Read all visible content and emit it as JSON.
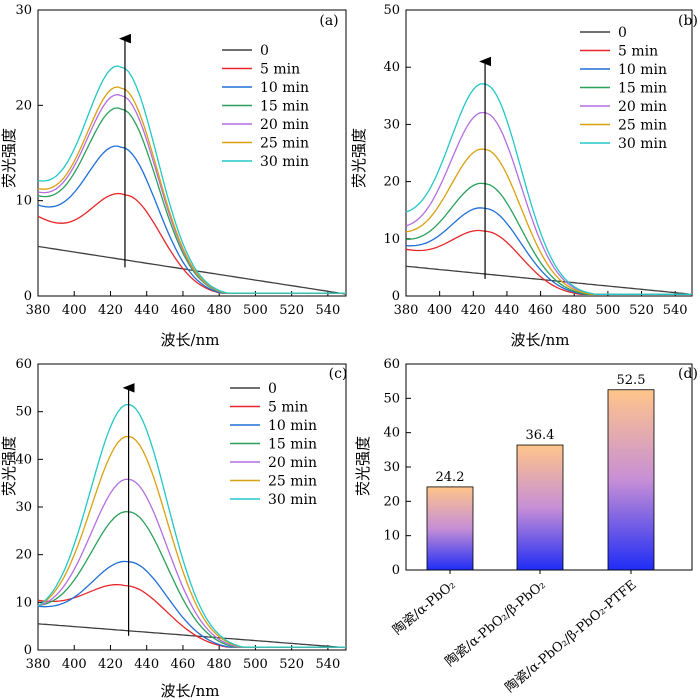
{
  "colors": [
    "#404040",
    "#e8262a",
    "#1f6fd6",
    "#2aa05a",
    "#b46ee0",
    "#d9a010",
    "#22c7c7"
  ],
  "chart_data": [
    {
      "panel": "(a)",
      "type": "line",
      "xlabel": "波长/nm",
      "ylabel": "荧光强度",
      "xlim": [
        380,
        550
      ],
      "ylim": [
        0,
        30
      ],
      "xticks": [
        380,
        400,
        420,
        440,
        460,
        480,
        500,
        520,
        540
      ],
      "yticks": [
        0,
        10,
        20,
        30
      ],
      "arrow_x": 428,
      "arrow_y": [
        3,
        27
      ],
      "series": [
        {
          "name": "0",
          "peak": 5.2,
          "center": 380,
          "width": 0,
          "base": 5.2,
          "end": 0.2
        },
        {
          "name": "5 min",
          "peak": 10.6,
          "center": 428,
          "width": 28,
          "base": 7.8,
          "end": 0.3
        },
        {
          "name": "10 min",
          "peak": 15.6,
          "center": 426,
          "width": 28,
          "base": 8.5,
          "end": 0.3
        },
        {
          "name": "15 min",
          "peak": 19.6,
          "center": 426,
          "width": 28,
          "base": 9.2,
          "end": 0.3
        },
        {
          "name": "20 min",
          "peak": 21.0,
          "center": 426,
          "width": 28,
          "base": 9.5,
          "end": 0.3
        },
        {
          "name": "25 min",
          "peak": 21.8,
          "center": 426,
          "width": 28,
          "base": 9.8,
          "end": 0.3
        },
        {
          "name": "30 min",
          "peak": 24.0,
          "center": 426,
          "width": 28,
          "base": 10.5,
          "end": 0.3
        }
      ]
    },
    {
      "panel": "(b)",
      "type": "line",
      "xlabel": "波长/nm",
      "ylabel": "荧光强度",
      "xlim": [
        380,
        550
      ],
      "ylim": [
        0,
        50
      ],
      "xticks": [
        380,
        400,
        420,
        440,
        460,
        480,
        500,
        520,
        540
      ],
      "yticks": [
        0,
        10,
        20,
        30,
        40,
        50
      ],
      "arrow_x": 427,
      "arrow_y": [
        3,
        41
      ],
      "series": [
        {
          "name": "0",
          "peak": 5.2,
          "center": 380,
          "width": 0,
          "base": 5.2,
          "end": 0.3
        },
        {
          "name": "5 min",
          "peak": 11.3,
          "center": 427,
          "width": 30,
          "base": 7.2,
          "end": 0.3
        },
        {
          "name": "10 min",
          "peak": 15.3,
          "center": 427,
          "width": 30,
          "base": 7.5,
          "end": 0.3
        },
        {
          "name": "15 min",
          "peak": 19.6,
          "center": 427,
          "width": 30,
          "base": 8.2,
          "end": 0.3
        },
        {
          "name": "20 min",
          "peak": 32.0,
          "center": 427,
          "width": 30,
          "base": 9.5,
          "end": 0.3
        },
        {
          "name": "25 min",
          "peak": 25.6,
          "center": 427,
          "width": 30,
          "base": 9.0,
          "end": 0.3
        },
        {
          "name": "30 min",
          "peak": 37.0,
          "center": 427,
          "width": 30,
          "base": 11.5,
          "end": 0.3
        }
      ]
    },
    {
      "panel": "(c)",
      "type": "line",
      "xlabel": "波长/nm",
      "ylabel": "荧光强度",
      "xlim": [
        380,
        550
      ],
      "ylim": [
        0,
        60
      ],
      "xticks": [
        380,
        400,
        420,
        440,
        460,
        480,
        500,
        520,
        540
      ],
      "yticks": [
        0,
        10,
        20,
        30,
        40,
        50,
        60
      ],
      "arrow_x": 430,
      "arrow_y": [
        3,
        55
      ],
      "series": [
        {
          "name": "0",
          "peak": 5.5,
          "center": 380,
          "width": 0,
          "base": 5.5,
          "end": 0.5
        },
        {
          "name": "5 min",
          "peak": 13.5,
          "center": 428,
          "width": 32,
          "base": 9.0,
          "end": 0.6
        },
        {
          "name": "10 min",
          "peak": 18.5,
          "center": 430,
          "width": 30,
          "base": 8.0,
          "end": 0.6
        },
        {
          "name": "15 min",
          "peak": 29.0,
          "center": 430,
          "width": 30,
          "base": 7.5,
          "end": 0.6
        },
        {
          "name": "20 min",
          "peak": 35.8,
          "center": 430,
          "width": 30,
          "base": 7.0,
          "end": 0.6
        },
        {
          "name": "25 min",
          "peak": 44.8,
          "center": 430,
          "width": 30,
          "base": 6.5,
          "end": 0.6
        },
        {
          "name": "30 min",
          "peak": 51.5,
          "center": 430,
          "width": 30,
          "base": 6.0,
          "end": 0.6
        }
      ]
    },
    {
      "panel": "(d)",
      "type": "bar",
      "ylabel": "荧光强度",
      "ylim": [
        0,
        60
      ],
      "yticks": [
        0,
        10,
        20,
        30,
        40,
        50,
        60
      ],
      "categories": [
        "陶瓷/α-PbO₂",
        "陶瓷/α-PbO₂/β-PbO₂",
        "陶瓷/α-PbO₂/β-PbO₂-PTFE"
      ],
      "values": [
        24.2,
        36.4,
        52.5
      ],
      "value_labels": [
        "24.2",
        "36.4",
        "52.5"
      ]
    }
  ]
}
